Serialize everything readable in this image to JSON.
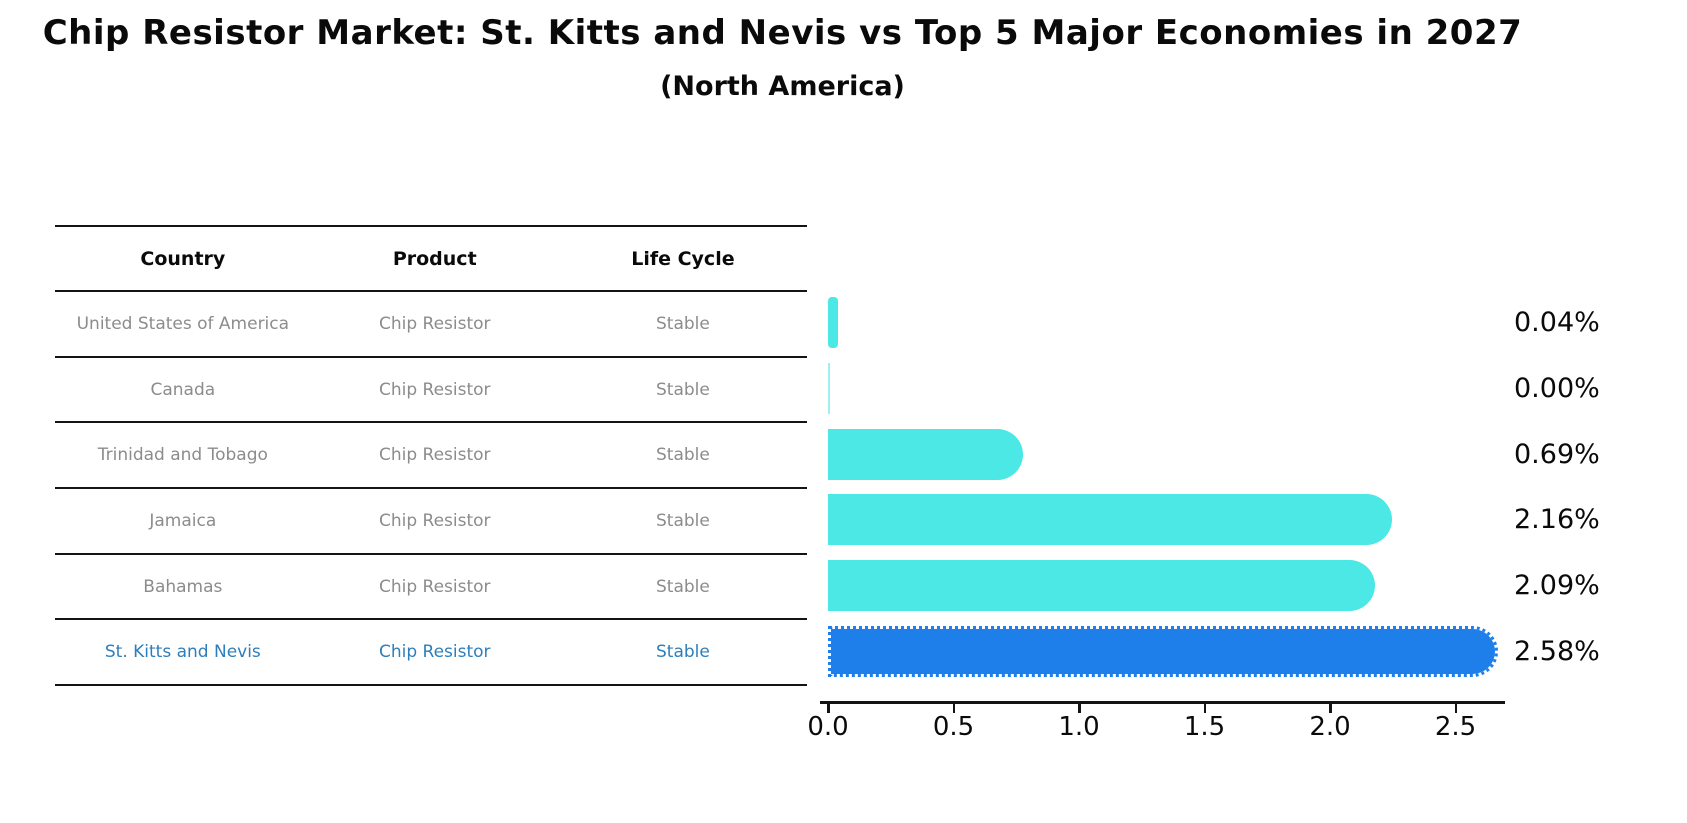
{
  "title": "Chip Resistor Market: St. Kitts and Nevis vs Top 5 Major Economies in 2027",
  "subtitle": "(North America)",
  "table": {
    "headers": [
      "Country",
      "Product",
      "Life Cycle"
    ],
    "rows": [
      {
        "country": "United States of America",
        "product": "Chip Resistor",
        "life_cycle": "Stable",
        "highlight": false
      },
      {
        "country": "Canada",
        "product": "Chip Resistor",
        "life_cycle": "Stable",
        "highlight": false
      },
      {
        "country": "Trinidad and Tobago",
        "product": "Chip Resistor",
        "life_cycle": "Stable",
        "highlight": false
      },
      {
        "country": "Jamaica",
        "product": "Chip Resistor",
        "life_cycle": "Stable",
        "highlight": false
      },
      {
        "country": "Bahamas",
        "product": "Chip Resistor",
        "life_cycle": "Stable",
        "highlight": false
      },
      {
        "country": "St. Kitts and Nevis",
        "product": "Chip Resistor",
        "life_cycle": "Stable",
        "highlight": true
      }
    ]
  },
  "chart_data": {
    "type": "bar",
    "orientation": "horizontal",
    "title": "Chip Resistor Market: St. Kitts and Nevis vs Top 5 Major Economies in 2027",
    "subtitle": "(North America)",
    "categories": [
      "United States of America",
      "Canada",
      "Trinidad and Tobago",
      "Jamaica",
      "Bahamas",
      "St. Kitts and Nevis"
    ],
    "values": [
      0.04,
      0.0,
      0.69,
      2.16,
      2.09,
      2.58
    ],
    "value_labels": [
      "0.04%",
      "0.00%",
      "0.69%",
      "2.16%",
      "2.09%",
      "2.58%"
    ],
    "highlight_index": 5,
    "xlim": [
      0,
      2.7
    ],
    "xticks": [
      0.0,
      0.5,
      1.0,
      1.5,
      2.0,
      2.5
    ],
    "xtick_labels": [
      "0.0",
      "0.5",
      "1.0",
      "1.5",
      "2.0",
      "2.5"
    ],
    "grid": false,
    "legend": false
  },
  "colors": {
    "bar": "#4BE8E6",
    "highlight_bar": "#1E7FEB",
    "highlight_text": "#2E7EBB",
    "row_text": "#8c8c8c",
    "header_text": "#111111",
    "axis": "#141414"
  }
}
